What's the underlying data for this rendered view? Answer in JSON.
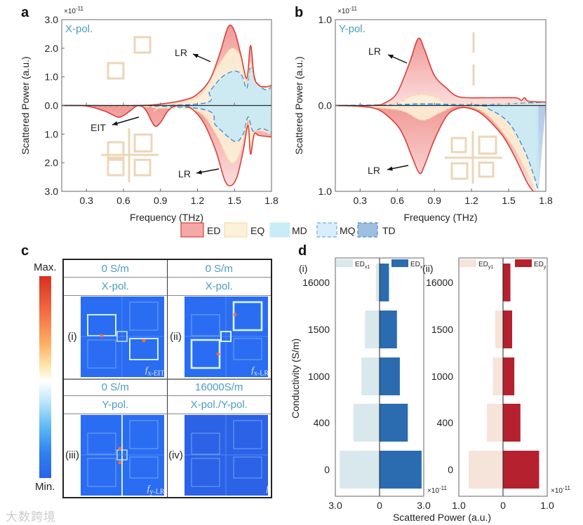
{
  "panel_labels": {
    "a": "a",
    "b": "b",
    "c": "c",
    "d": "d"
  },
  "legend": [
    {
      "name": "ED",
      "fill": "#f4a9a6",
      "stroke": "#d9403a"
    },
    {
      "name": "EQ",
      "fill": "#fdf1d8",
      "stroke": "#f5dca8"
    },
    {
      "name": "MD",
      "fill": "#c9edf6",
      "stroke": "#c9edf6"
    },
    {
      "name": "MQ",
      "fill": "#d8eefb",
      "stroke": "#66aee8"
    },
    {
      "name": "TD",
      "fill": "#9fbfe2",
      "stroke": "#4a8ad6"
    }
  ],
  "chart_data": [
    {
      "type": "area",
      "panel": "a",
      "pol_label": "X-pol.",
      "scale_label": "×10",
      "scale_exp": "-11",
      "xlabel": "Frequency (THz)",
      "ylabel": "Scattered Power (a.u.)",
      "xlim": [
        0.1,
        1.8
      ],
      "ylim": [
        -3.0,
        3.0
      ],
      "xticks": [
        "0.3",
        "0.6",
        "0.9",
        "1.2",
        "1.5",
        "1.8"
      ],
      "yticks": [
        "3.0",
        "2.0",
        "1.0",
        "0.0",
        "1.0",
        "2.0",
        "3.0"
      ],
      "annotations": [
        {
          "text": "LR"
        },
        {
          "text": "LR"
        },
        {
          "text": "EIT"
        }
      ],
      "series": [
        {
          "name": "ED",
          "upper": [
            [
              0.1,
              0
            ],
            [
              0.7,
              0
            ],
            [
              0.9,
              0.05
            ],
            [
              1.1,
              0.2
            ],
            [
              1.2,
              0.4
            ],
            [
              1.3,
              0.9
            ],
            [
              1.38,
              1.8
            ],
            [
              1.45,
              2.75
            ],
            [
              1.5,
              2.6
            ],
            [
              1.55,
              1.8
            ],
            [
              1.6,
              0.95
            ],
            [
              1.63,
              2.1
            ],
            [
              1.66,
              1.0
            ],
            [
              1.7,
              0.7
            ],
            [
              1.75,
              0.65
            ],
            [
              1.8,
              0.7
            ]
          ],
          "lower": [
            [
              0.1,
              0
            ],
            [
              0.3,
              -0.02
            ],
            [
              0.45,
              -0.2
            ],
            [
              0.55,
              -0.4
            ],
            [
              0.6,
              -0.35
            ],
            [
              0.65,
              -0.2
            ],
            [
              0.72,
              0
            ],
            [
              0.78,
              -0.15
            ],
            [
              0.85,
              -0.7
            ],
            [
              0.9,
              -0.6
            ],
            [
              0.95,
              -0.25
            ],
            [
              1.0,
              -0.05
            ],
            [
              1.07,
              0
            ],
            [
              1.15,
              -0.1
            ],
            [
              1.25,
              -0.6
            ],
            [
              1.35,
              -1.6
            ],
            [
              1.42,
              -2.6
            ],
            [
              1.47,
              -2.8
            ],
            [
              1.52,
              -2.5
            ],
            [
              1.57,
              -1.6
            ],
            [
              1.61,
              -0.7
            ],
            [
              1.63,
              -1.7
            ],
            [
              1.66,
              -1.0
            ],
            [
              1.7,
              -1.05
            ],
            [
              1.8,
              -1.1
            ]
          ]
        },
        {
          "name": "EQ",
          "upper": [
            [
              0.1,
              0
            ],
            [
              0.9,
              0
            ],
            [
              1.2,
              0.3
            ],
            [
              1.3,
              0.9
            ],
            [
              1.4,
              1.6
            ],
            [
              1.48,
              2.0
            ],
            [
              1.55,
              1.7
            ],
            [
              1.6,
              0.8
            ],
            [
              1.63,
              1.5
            ],
            [
              1.67,
              0.8
            ],
            [
              1.8,
              0.65
            ]
          ],
          "lower": [
            [
              0.1,
              0
            ],
            [
              0.8,
              -0.05
            ],
            [
              0.85,
              -0.2
            ],
            [
              0.9,
              -0.1
            ],
            [
              1.2,
              -0.2
            ],
            [
              1.35,
              -1.0
            ],
            [
              1.47,
              -2.0
            ],
            [
              1.55,
              -1.6
            ],
            [
              1.61,
              -0.5
            ],
            [
              1.63,
              -1.5
            ],
            [
              1.67,
              -0.9
            ],
            [
              1.8,
              -1.0
            ]
          ]
        },
        {
          "name": "MQ",
          "upper": [
            [
              0.1,
              0
            ],
            [
              1.2,
              0.05
            ],
            [
              1.3,
              0.5
            ],
            [
              1.4,
              1.0
            ],
            [
              1.5,
              1.2
            ],
            [
              1.56,
              1.05
            ],
            [
              1.6,
              0.6
            ],
            [
              1.63,
              1.35
            ],
            [
              1.68,
              0.8
            ],
            [
              1.75,
              0.55
            ],
            [
              1.8,
              0.65
            ]
          ],
          "lower": [
            [
              0.1,
              0
            ],
            [
              1.2,
              -0.1
            ],
            [
              1.35,
              -0.7
            ],
            [
              1.5,
              -1.25
            ],
            [
              1.57,
              -1.0
            ],
            [
              1.61,
              -0.4
            ],
            [
              1.65,
              -0.9
            ],
            [
              1.72,
              -0.8
            ],
            [
              1.8,
              -0.95
            ]
          ]
        }
      ]
    },
    {
      "type": "area",
      "panel": "b",
      "pol_label": "Y-pol.",
      "scale_label": "×10",
      "scale_exp": "-11",
      "xlabel": "Frequency (THz)",
      "ylabel": "Scattered Power (a.u.)",
      "xlim": [
        0.1,
        1.8
      ],
      "ylim": [
        -1.0,
        1.0
      ],
      "xticks": [
        "0.3",
        "0.6",
        "0.9",
        "1.2",
        "1.5",
        "1.8"
      ],
      "yticks": [
        "1.0",
        "0.0",
        "1.0"
      ],
      "annotations": [
        {
          "text": "LR"
        },
        {
          "text": "LR"
        }
      ],
      "series": [
        {
          "name": "ED",
          "upper": [
            [
              0.1,
              0
            ],
            [
              0.4,
              0
            ],
            [
              0.5,
              0.03
            ],
            [
              0.6,
              0.15
            ],
            [
              0.7,
              0.5
            ],
            [
              0.77,
              0.78
            ],
            [
              0.82,
              0.65
            ],
            [
              0.9,
              0.35
            ],
            [
              1.0,
              0.2
            ],
            [
              1.1,
              0.1
            ],
            [
              1.3,
              0.09
            ],
            [
              1.55,
              0.09
            ],
            [
              1.6,
              0.06
            ],
            [
              1.63,
              0.09
            ],
            [
              1.66,
              0.05
            ],
            [
              1.8,
              0.04
            ]
          ],
          "lower": [
            [
              0.1,
              0
            ],
            [
              0.3,
              -0.01
            ],
            [
              0.45,
              -0.05
            ],
            [
              0.58,
              -0.2
            ],
            [
              0.65,
              -0.35
            ],
            [
              0.72,
              -0.6
            ],
            [
              0.78,
              -0.79
            ],
            [
              0.82,
              -0.7
            ],
            [
              0.9,
              -0.4
            ],
            [
              1.0,
              -0.12
            ],
            [
              1.1,
              -0.03
            ],
            [
              1.2,
              -0.04
            ],
            [
              1.3,
              -0.12
            ],
            [
              1.45,
              -0.35
            ],
            [
              1.55,
              -0.6
            ],
            [
              1.65,
              -0.9
            ],
            [
              1.7,
              -1.0
            ]
          ]
        },
        {
          "name": "EQ",
          "upper": [
            [
              0.1,
              0
            ],
            [
              0.55,
              0.01
            ],
            [
              0.7,
              0.1
            ],
            [
              0.8,
              0.13
            ],
            [
              0.9,
              0.1
            ],
            [
              1.0,
              0.03
            ],
            [
              1.2,
              0.02
            ],
            [
              1.8,
              0.02
            ]
          ],
          "lower": [
            [
              0.1,
              0
            ],
            [
              0.6,
              -0.05
            ],
            [
              0.8,
              -0.17
            ],
            [
              0.95,
              -0.08
            ],
            [
              1.1,
              0
            ],
            [
              1.3,
              -0.08
            ],
            [
              1.5,
              -0.4
            ],
            [
              1.62,
              -0.7
            ],
            [
              1.72,
              -1.0
            ]
          ]
        },
        {
          "name": "MQ",
          "upper": [
            [
              0.1,
              0
            ],
            [
              0.6,
              0.01
            ],
            [
              0.8,
              0.02
            ],
            [
              1.2,
              0.01
            ],
            [
              1.5,
              0.02
            ],
            [
              1.8,
              0.04
            ]
          ],
          "lower": [
            [
              0.1,
              0
            ],
            [
              1.2,
              0
            ],
            [
              1.35,
              -0.05
            ],
            [
              1.5,
              -0.2
            ],
            [
              1.62,
              -0.5
            ],
            [
              1.7,
              -0.8
            ],
            [
              1.74,
              -1.0
            ]
          ]
        }
      ]
    },
    {
      "type": "bar",
      "orientation": "horizontal",
      "panel": "d(i)",
      "roman": "(i)",
      "categories": [
        "16000",
        "1500",
        "1000",
        "400",
        "0"
      ],
      "ylabel": "Conductivity (S/m)",
      "xlabel": "Scattered Power (a.u.)",
      "xticks": [
        "3.0",
        "0",
        "3.0"
      ],
      "xlim": [
        -3.0,
        3.0
      ],
      "scale_label": "×10",
      "scale_exp": "-11",
      "series": [
        {
          "name": "ED",
          "sub": "x1",
          "side": "left",
          "color": "#d9e8ec",
          "values": [
            0.25,
            1.0,
            1.25,
            1.8,
            2.75
          ]
        },
        {
          "name": "ED",
          "sub": "x",
          "side": "right",
          "color": "#2b6cb0",
          "values": [
            0.65,
            1.2,
            1.4,
            1.95,
            2.9
          ]
        }
      ]
    },
    {
      "type": "bar",
      "orientation": "horizontal",
      "panel": "d(ii)",
      "roman": "(ii)",
      "categories": [
        "16000",
        "1500",
        "1000",
        "400",
        "0"
      ],
      "xticks": [
        "1.0",
        "0",
        "1.0"
      ],
      "xlim": [
        -1.0,
        1.0
      ],
      "scale_label": "×10",
      "scale_exp": "-11",
      "series": [
        {
          "name": "ED",
          "sub": "y1",
          "side": "left",
          "color": "#f6e3da",
          "values": [
            0.02,
            0.18,
            0.23,
            0.37,
            0.79
          ]
        },
        {
          "name": "ED",
          "sub": "y",
          "side": "right",
          "color": "#b5212e",
          "values": [
            0.17,
            0.21,
            0.26,
            0.4,
            0.83
          ]
        }
      ]
    }
  ],
  "panel_c": {
    "colorbar_max": "Max.",
    "colorbar_min": "Min.",
    "cells": [
      {
        "conductivity": "0 S/m",
        "pol": "X-pol.",
        "roman": "(i)",
        "f": "f",
        "f_sub": "x-EIT"
      },
      {
        "conductivity": "0 S/m",
        "pol": "X-pol.",
        "roman": "(ii)",
        "f": "f",
        "f_sub": "x-LR"
      },
      {
        "conductivity": "0 S/m",
        "pol": "Y-pol.",
        "roman": "(iii)",
        "f": "f",
        "f_sub": "y-LR"
      },
      {
        "conductivity": "16000S/m",
        "pol": "X-pol./Y-pol.",
        "roman": "(iv)",
        "f": "f",
        "f_sub": ""
      }
    ]
  },
  "watermark": "大数跨境"
}
